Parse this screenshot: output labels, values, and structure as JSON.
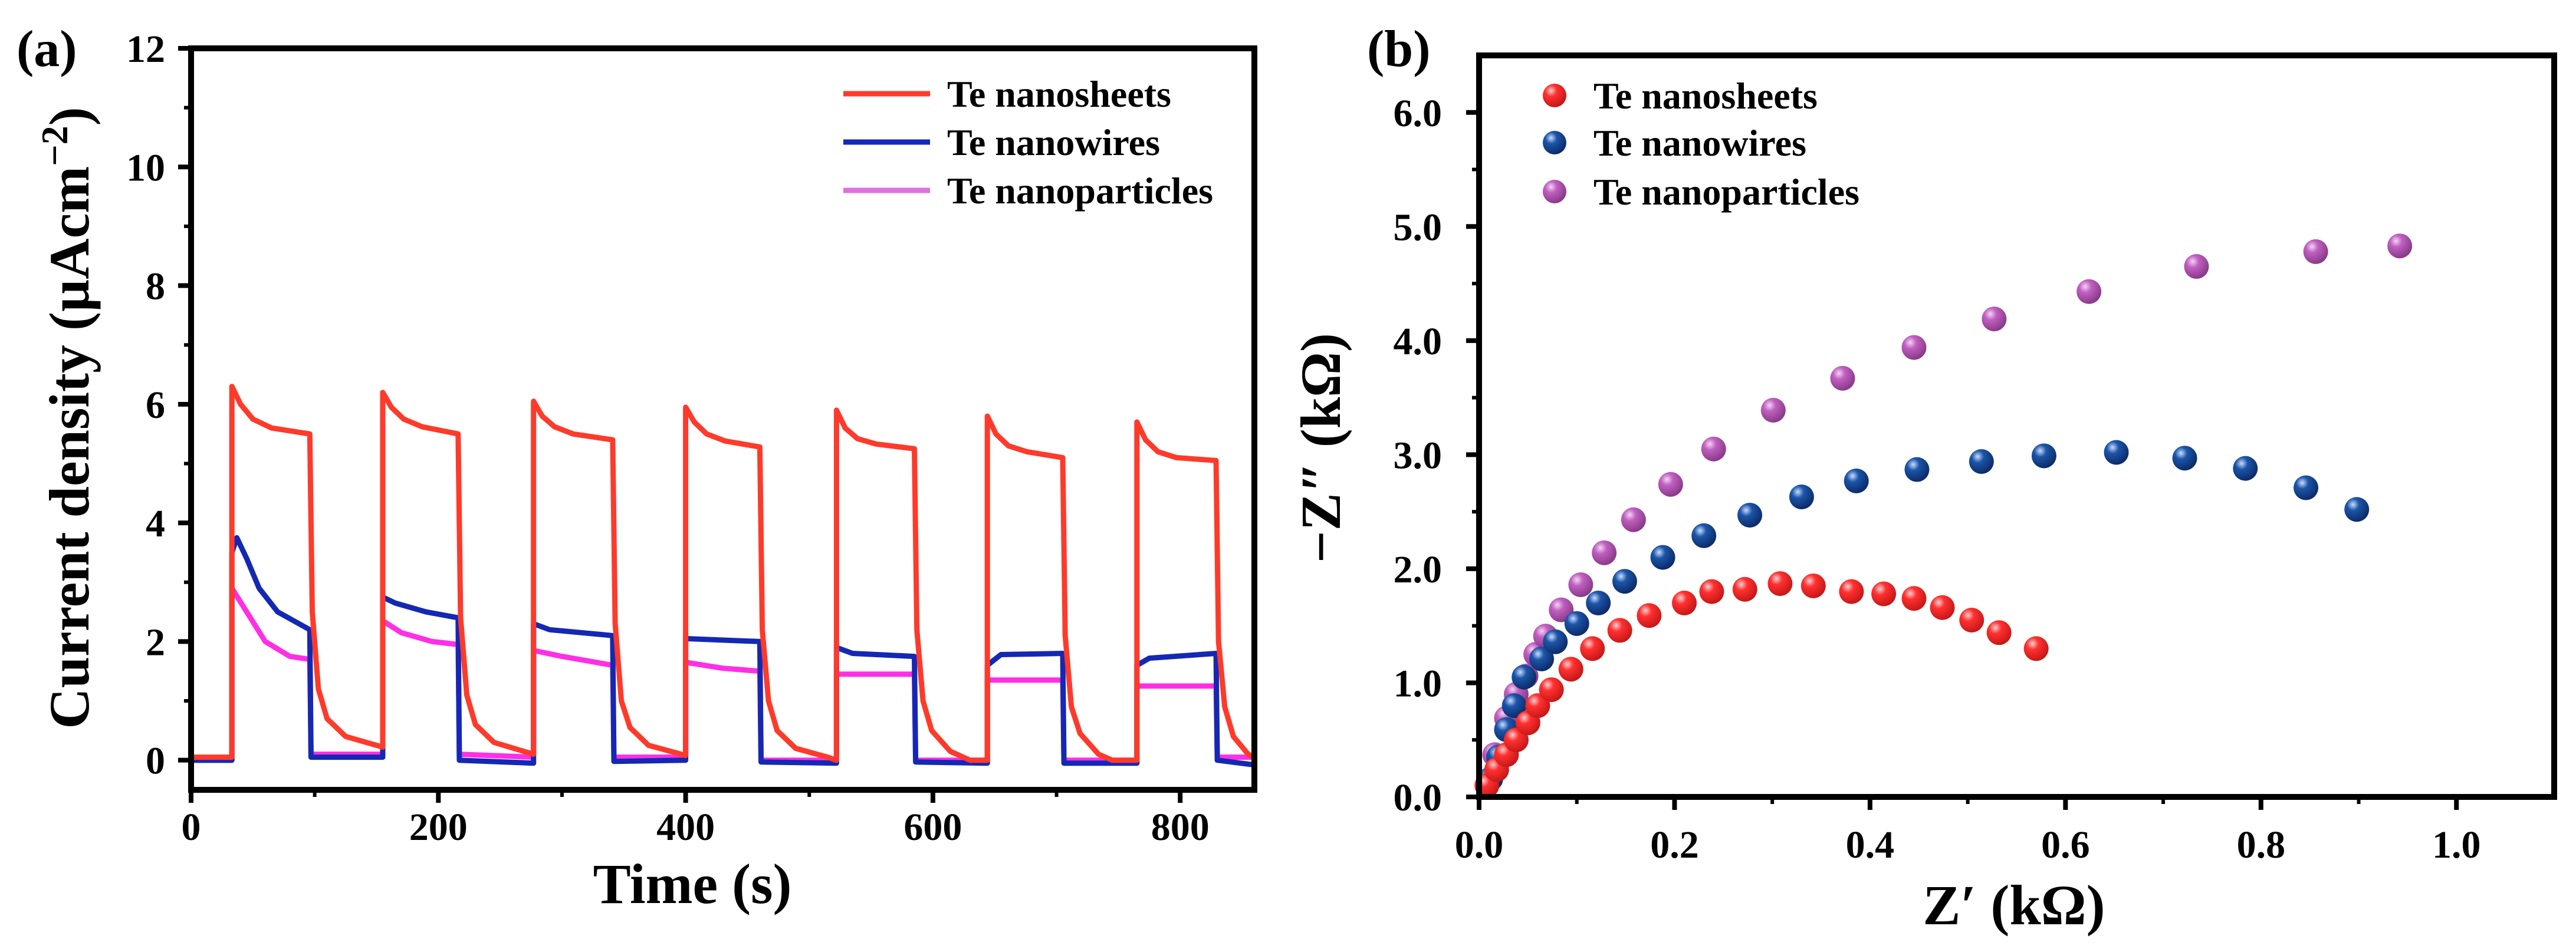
{
  "chart_data": [
    {
      "panel_label": "(a)",
      "type": "line",
      "xlabel": "Time (s)",
      "ylabel": "Current density (µAcm",
      "ylabel_sup": "−2",
      "ylabel_close": ")",
      "xlim": [
        0,
        860
      ],
      "ylim": [
        -0.5,
        12
      ],
      "xticks": [
        0,
        200,
        400,
        600,
        800
      ],
      "xtick_labels": [
        "0",
        "200",
        "400",
        "600",
        "800"
      ],
      "xminor": [
        100,
        300,
        500,
        700
      ],
      "yticks": [
        0,
        2,
        4,
        6,
        8,
        10,
        12
      ],
      "ytick_labels": [
        "0",
        "2",
        "4",
        "6",
        "8",
        "10",
        "12"
      ],
      "yminor": [
        1,
        3,
        5,
        7,
        9,
        11
      ],
      "legend_position": "top-right",
      "series": [
        {
          "name": "Te nanosheets",
          "color": "#ff3a2a",
          "x": [
            0,
            33,
            33,
            40,
            50,
            65,
            96,
            98,
            103,
            110,
            125,
            155,
            155,
            162,
            172,
            187,
            216,
            218,
            223,
            230,
            245,
            277,
            277,
            284,
            294,
            309,
            341,
            343,
            348,
            355,
            370,
            400,
            400,
            407,
            417,
            432,
            460,
            462,
            467,
            474,
            489,
            515,
            522,
            522,
            529,
            539,
            554,
            585,
            587,
            592,
            599,
            614,
            630,
            644,
            644,
            651,
            661,
            676,
            705,
            707,
            712,
            719,
            734,
            745,
            765,
            765,
            772,
            782,
            797,
            829,
            831,
            836,
            843,
            855,
            860
          ],
          "y": [
            0.05,
            0.05,
            6.3,
            6.0,
            5.75,
            5.6,
            5.5,
            2.5,
            1.2,
            0.7,
            0.4,
            0.22,
            6.2,
            5.95,
            5.75,
            5.62,
            5.5,
            2.4,
            1.1,
            0.6,
            0.3,
            0.1,
            6.05,
            5.8,
            5.62,
            5.5,
            5.4,
            2.3,
            1.0,
            0.55,
            0.25,
            0.08,
            5.95,
            5.7,
            5.5,
            5.38,
            5.28,
            2.2,
            1.0,
            0.5,
            0.2,
            0.05,
            0,
            5.9,
            5.6,
            5.42,
            5.33,
            5.25,
            2.2,
            1.0,
            0.5,
            0.15,
            0,
            0,
            5.8,
            5.5,
            5.3,
            5.2,
            5.1,
            2.1,
            0.9,
            0.45,
            0.1,
            0,
            0,
            5.7,
            5.4,
            5.2,
            5.1,
            5.05,
            2.0,
            0.9,
            0.4,
            0.1,
            0.05
          ]
        },
        {
          "name": "Te nanowires",
          "color": "#1428b4",
          "x": [
            0,
            33,
            33,
            37,
            45,
            55,
            70,
            96,
            97,
            155,
            155,
            165,
            190,
            216,
            217,
            277,
            277,
            290,
            341,
            342,
            400,
            400,
            460,
            461,
            522,
            522,
            535,
            585,
            586,
            644,
            644,
            655,
            705,
            706,
            765,
            765,
            775,
            829,
            830,
            860
          ],
          "y": [
            0,
            0,
            3.5,
            3.75,
            3.4,
            2.9,
            2.5,
            2.2,
            0.05,
            0.05,
            2.75,
            2.65,
            2.5,
            2.4,
            0,
            -0.05,
            2.3,
            2.2,
            2.1,
            -0.02,
            0,
            2.05,
            2.0,
            -0.03,
            -0.05,
            1.9,
            1.8,
            1.75,
            -0.03,
            -0.05,
            1.6,
            1.78,
            1.8,
            -0.05,
            -0.05,
            1.6,
            1.72,
            1.8,
            0,
            -0.08
          ]
        },
        {
          "name": "Te nanoparticles",
          "color": "#ff2fe6",
          "x": [
            0,
            33,
            33,
            45,
            60,
            80,
            96,
            97,
            155,
            155,
            170,
            195,
            216,
            217,
            277,
            277,
            300,
            341,
            342,
            400,
            400,
            430,
            460,
            461,
            522,
            522,
            585,
            586,
            644,
            644,
            705,
            706,
            765,
            765,
            829,
            830,
            860
          ],
          "y": [
            0,
            0,
            2.9,
            2.5,
            2.0,
            1.75,
            1.7,
            0.1,
            0.1,
            2.35,
            2.15,
            2.0,
            1.95,
            0.1,
            0.05,
            1.85,
            1.75,
            1.6,
            0.05,
            0.05,
            1.65,
            1.55,
            1.5,
            0,
            0,
            1.45,
            1.45,
            0,
            0,
            1.35,
            1.35,
            0,
            0,
            1.25,
            1.25,
            0.05,
            0.05
          ]
        }
      ]
    },
    {
      "panel_label": "(b)",
      "type": "scatter",
      "xlabel": "Z′ (kΩ)",
      "ylabel": "−Z″ (kΩ)",
      "xlim": [
        0,
        1.1
      ],
      "ylim": [
        0,
        6.5
      ],
      "xticks": [
        0,
        0.2,
        0.4,
        0.6,
        0.8,
        1.0
      ],
      "xtick_labels": [
        "0.0",
        "0.2",
        "0.4",
        "0.6",
        "0.8",
        "1.0"
      ],
      "xminor": [
        0.1,
        0.3,
        0.5,
        0.7,
        0.9
      ],
      "yticks": [
        0,
        1,
        2,
        3,
        4,
        5,
        6
      ],
      "ytick_labels": [
        "0.0",
        "1.0",
        "2.0",
        "3.0",
        "4.0",
        "5.0",
        "6.0"
      ],
      "yminor": [
        0.5,
        1.5,
        2.5,
        3.5,
        4.5,
        5.5
      ],
      "legend_position": "top-left",
      "series": [
        {
          "name": "Te nanosheets",
          "color": "#ff3030",
          "x": [
            0.008,
            0.018,
            0.028,
            0.038,
            0.05,
            0.06,
            0.074,
            0.094,
            0.116,
            0.144,
            0.174,
            0.21,
            0.238,
            0.272,
            0.308,
            0.342,
            0.381,
            0.414,
            0.445,
            0.474,
            0.504,
            0.532,
            0.57
          ],
          "y": [
            0.1,
            0.24,
            0.37,
            0.5,
            0.65,
            0.8,
            0.94,
            1.12,
            1.3,
            1.46,
            1.59,
            1.7,
            1.8,
            1.82,
            1.87,
            1.85,
            1.8,
            1.78,
            1.74,
            1.66,
            1.55,
            1.44,
            1.3
          ]
        },
        {
          "name": "Te nanowires",
          "color": "#1c55a8",
          "x": [
            0.012,
            0.02,
            0.028,
            0.036,
            0.046,
            0.064,
            0.078,
            0.1,
            0.122,
            0.149,
            0.188,
            0.23,
            0.277,
            0.33,
            0.386,
            0.448,
            0.514,
            0.578,
            0.652,
            0.722,
            0.784,
            0.846,
            0.898
          ],
          "y": [
            0.16,
            0.35,
            0.59,
            0.8,
            1.05,
            1.21,
            1.36,
            1.52,
            1.7,
            1.89,
            2.1,
            2.29,
            2.47,
            2.63,
            2.77,
            2.87,
            2.94,
            2.99,
            3.02,
            2.97,
            2.88,
            2.71,
            2.52
          ]
        },
        {
          "name": "Te nanoparticles",
          "color": "#c060c0",
          "x": [
            0.016,
            0.028,
            0.038,
            0.048,
            0.058,
            0.068,
            0.084,
            0.104,
            0.128,
            0.158,
            0.196,
            0.24,
            0.301,
            0.372,
            0.445,
            0.527,
            0.624,
            0.734,
            0.856,
            0.942
          ],
          "y": [
            0.37,
            0.69,
            0.9,
            1.06,
            1.25,
            1.41,
            1.64,
            1.86,
            2.14,
            2.43,
            2.74,
            3.05,
            3.39,
            3.67,
            3.94,
            4.19,
            4.43,
            4.65,
            4.78,
            4.83
          ]
        }
      ]
    }
  ]
}
